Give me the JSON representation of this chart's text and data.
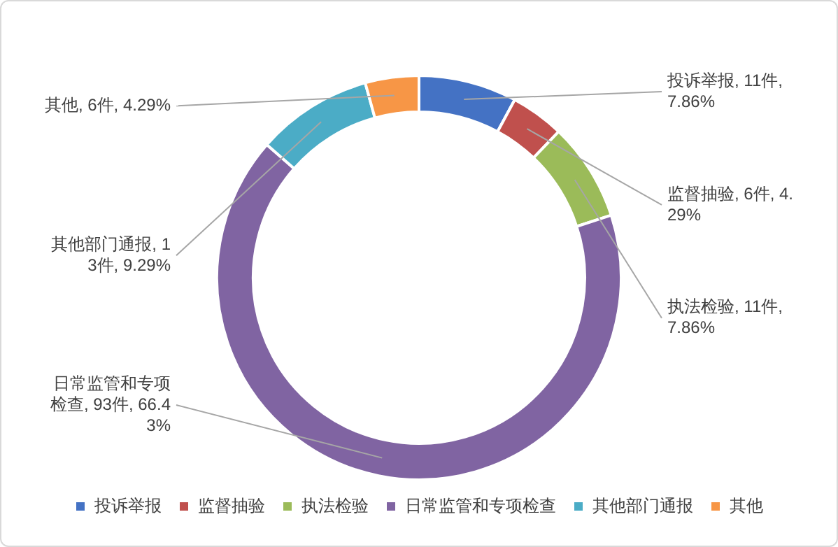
{
  "chart_data": {
    "type": "donut",
    "categories": [
      "投诉举报",
      "监督抽验",
      "执法检验",
      "日常监管和专项检查",
      "其他部门通报",
      "其他"
    ],
    "values": [
      11,
      6,
      11,
      93,
      13,
      6
    ],
    "colors": [
      "#4472c4",
      "#c0504d",
      "#9bbb59",
      "#8064a2",
      "#4bacc6",
      "#f79646"
    ],
    "value_labels": [
      "投诉举报, 11件, 7.86%",
      "监督抽验, 6件, 4.29%",
      "执法检验, 11件, 7.86%",
      "日常监管和专项检查, 93件, 66.43%",
      "其他部门通报, 13件, 9.29%",
      "其他, 6件, 4.29%"
    ],
    "legend": "bottom"
  }
}
